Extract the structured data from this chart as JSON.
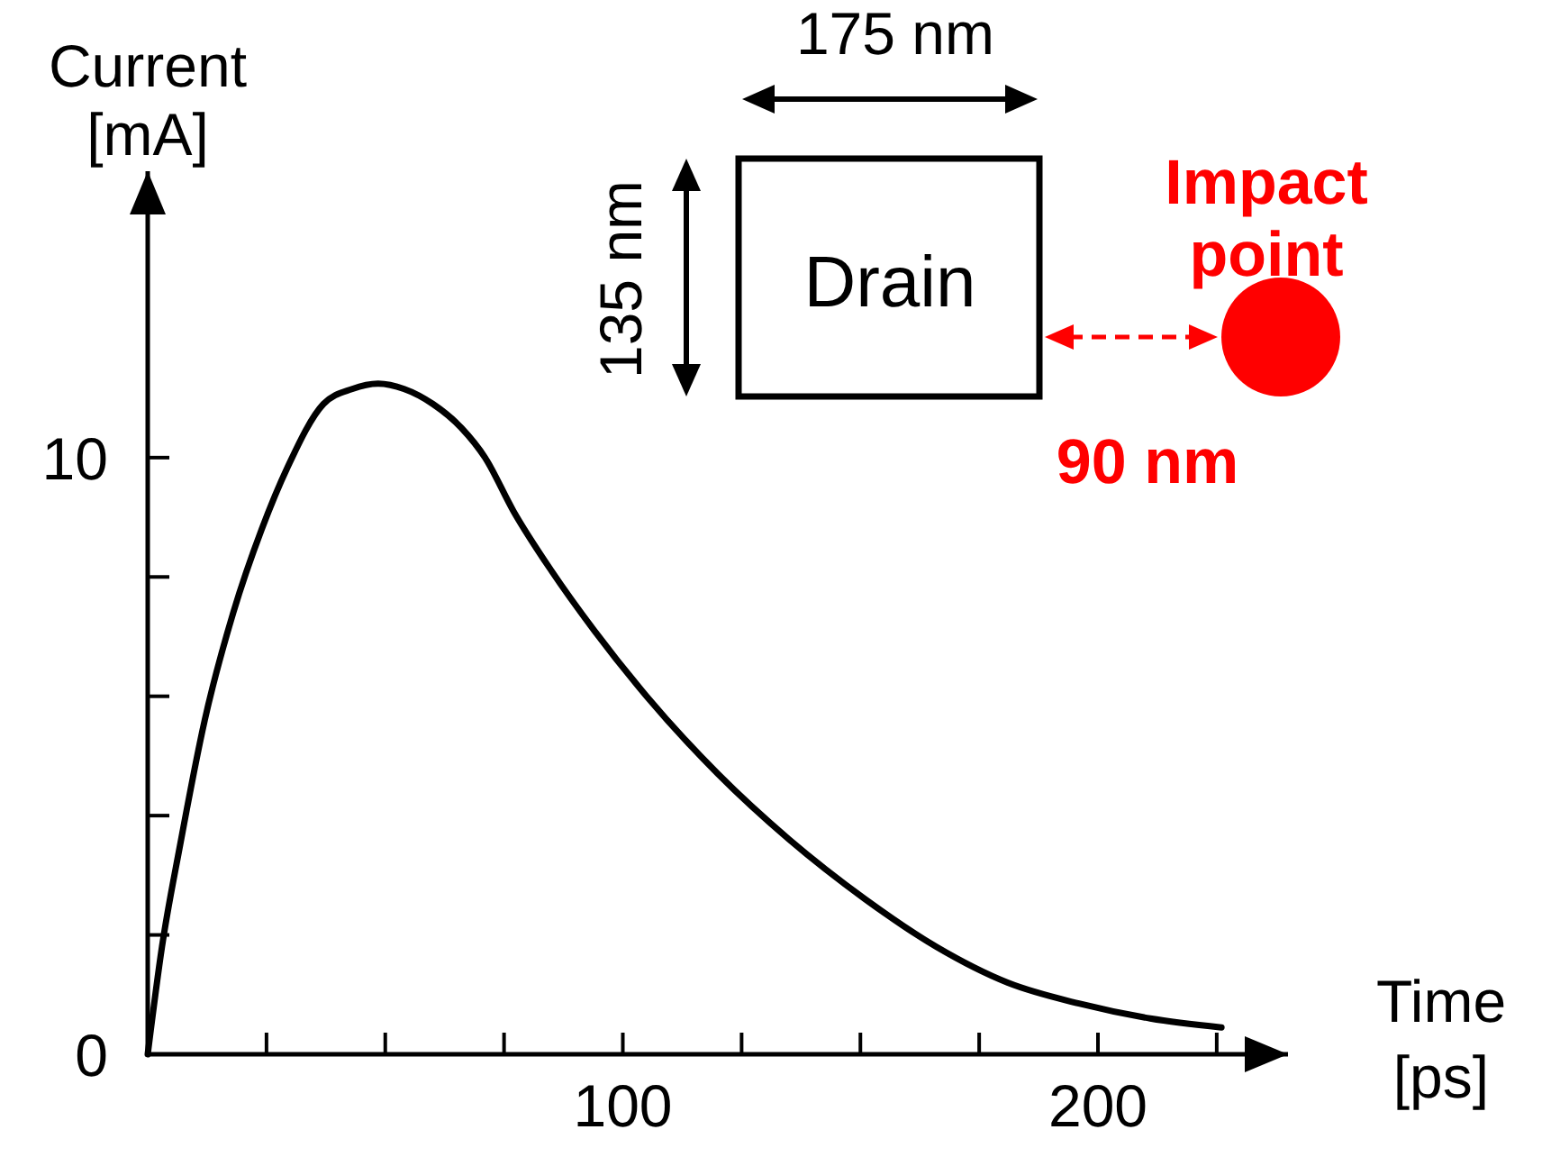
{
  "chart_data": {
    "type": "line",
    "xlabel": "Time [ps]",
    "ylabel": "Current [mA]",
    "x": [
      0,
      3,
      6.8,
      12,
      18,
      24,
      29.5,
      37,
      43,
      48.5,
      54,
      60,
      66,
      71,
      77,
      85,
      94,
      105,
      120,
      135,
      151,
      166,
      181,
      196,
      211,
      226
    ],
    "series": [
      {
        "color": "#000000",
        "values": [
          0,
          1.8,
          3.5,
          5.6,
          7.4,
          8.8,
          9.85,
          10.9,
          11.15,
          11.24,
          11.15,
          10.9,
          10.5,
          10,
          9.1,
          8.1,
          7.1,
          6,
          4.7,
          3.6,
          2.6,
          1.8,
          1.2,
          0.85,
          0.6,
          0.45
        ]
      }
    ],
    "xlim": [
      0,
      240
    ],
    "ylim": [
      0,
      14.8
    ],
    "xticks": [
      {
        "value": 0,
        "label": null
      },
      {
        "value": 25,
        "label": null
      },
      {
        "value": 50,
        "label": null
      },
      {
        "value": 75,
        "label": null
      },
      100,
      {
        "value": 125,
        "label": null
      },
      {
        "value": 150,
        "label": null
      },
      {
        "value": 175,
        "label": null
      },
      200,
      {
        "value": 225,
        "label": null
      }
    ],
    "yticks": [
      0,
      {
        "value": 2,
        "label": null
      },
      {
        "value": 4,
        "label": null
      },
      {
        "value": 6,
        "label": null
      },
      {
        "value": 8,
        "label": null
      },
      10
    ],
    "grid": false,
    "marker": "none",
    "line_style": "solid",
    "annotations": [
      "Drain",
      "175 nm",
      "135 nm",
      "Impact point",
      "90 nm"
    ]
  }
}
